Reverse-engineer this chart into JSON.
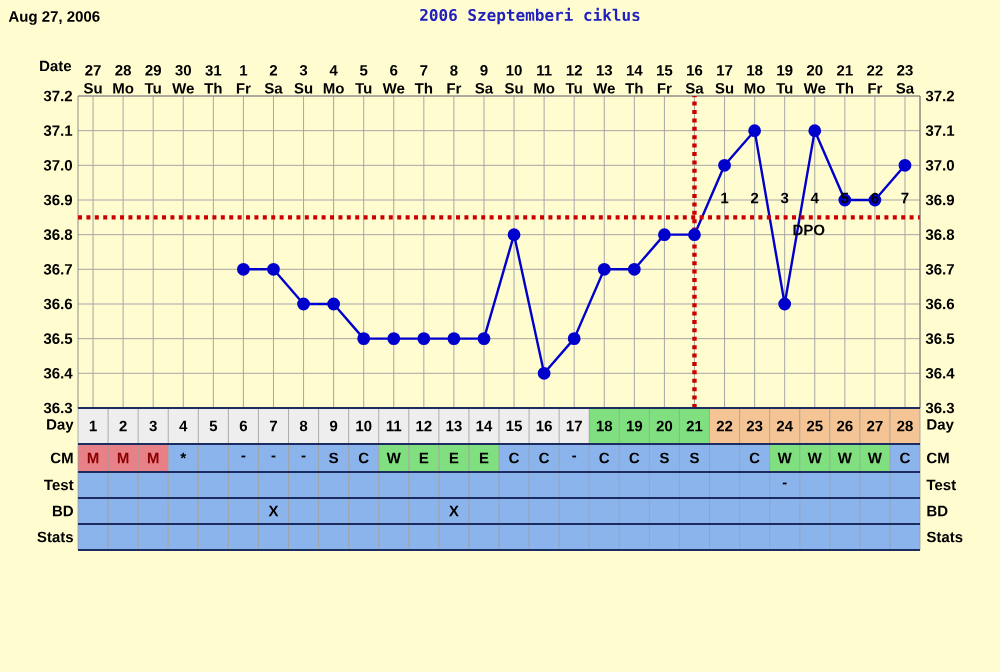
{
  "chart_data": {
    "type": "line",
    "title": "2006 Szeptemberi ciklus",
    "xlabel": "Date",
    "categories": [
      "27 Su",
      "28 Mo",
      "29 Tu",
      "30 We",
      "31 Th",
      "1 Fr",
      "2 Sa",
      "3 Su",
      "4 Mo",
      "5 Tu",
      "6 We",
      "7 Th",
      "8 Fr",
      "9 Sa",
      "10 Su",
      "11 Mo",
      "12 Tu",
      "13 We",
      "14 Th",
      "15 Fr",
      "16 Sa",
      "17 Su",
      "18 Mo",
      "19 Tu",
      "20 We",
      "21 Th",
      "22 Fr",
      "23 Sa"
    ],
    "series": [
      {
        "color": "#0000cc",
        "values": [
          null,
          null,
          null,
          null,
          null,
          36.7,
          36.7,
          36.6,
          36.6,
          36.5,
          36.5,
          36.5,
          36.5,
          36.5,
          36.8,
          36.4,
          36.5,
          36.7,
          36.7,
          36.8,
          36.8,
          37.0,
          37.1,
          36.6,
          37.1,
          36.9,
          36.9,
          37.0
        ]
      }
    ],
    "ylim": [
      36.3,
      37.2
    ],
    "yticks": [
      36.3,
      36.4,
      36.5,
      36.6,
      36.7,
      36.8,
      36.9,
      {
        "value": 37.0,
        "label": "37.0"
      },
      37.1,
      37.2
    ],
    "y2lim": [
      36.3,
      37.2
    ],
    "y2ticks": [
      36.3,
      36.4,
      36.5,
      36.6,
      36.7,
      36.8,
      36.9,
      {
        "value": 37.0,
        "label": "37.0"
      },
      37.1,
      37.2
    ],
    "grid": true,
    "marker": "circle",
    "line_style": "solid",
    "ref_lines": [
      {
        "axis": "y",
        "value": 36.85,
        "color": "#cc0000",
        "line_style": "dotted"
      },
      {
        "axis": "x",
        "value": "16 Sa",
        "color": "#cc0000",
        "line_style": "dotted"
      }
    ],
    "annotations": [
      "Aug 27, 2006",
      "1",
      "2",
      "3",
      "4",
      "5",
      "6",
      "7",
      "DPO",
      "Day",
      "1",
      "2",
      "3",
      "4",
      "5",
      "6",
      "7",
      "8",
      "9",
      "10",
      "11",
      "12",
      "13",
      "14",
      "15",
      "16",
      "17",
      "18",
      "19",
      "20",
      "21",
      "22",
      "23",
      "24",
      "25",
      "26",
      "27",
      "28",
      "CM",
      "M",
      "M",
      "M",
      "*",
      "-",
      "-",
      "-",
      "S",
      "C",
      "W",
      "E",
      "E",
      "E",
      "C",
      "C",
      "-",
      "C",
      "C",
      "S",
      "S",
      "C",
      "W",
      "W",
      "W",
      "W",
      "C",
      "Test",
      "-",
      "BD",
      "X",
      "X",
      "Stats"
    ]
  }
}
